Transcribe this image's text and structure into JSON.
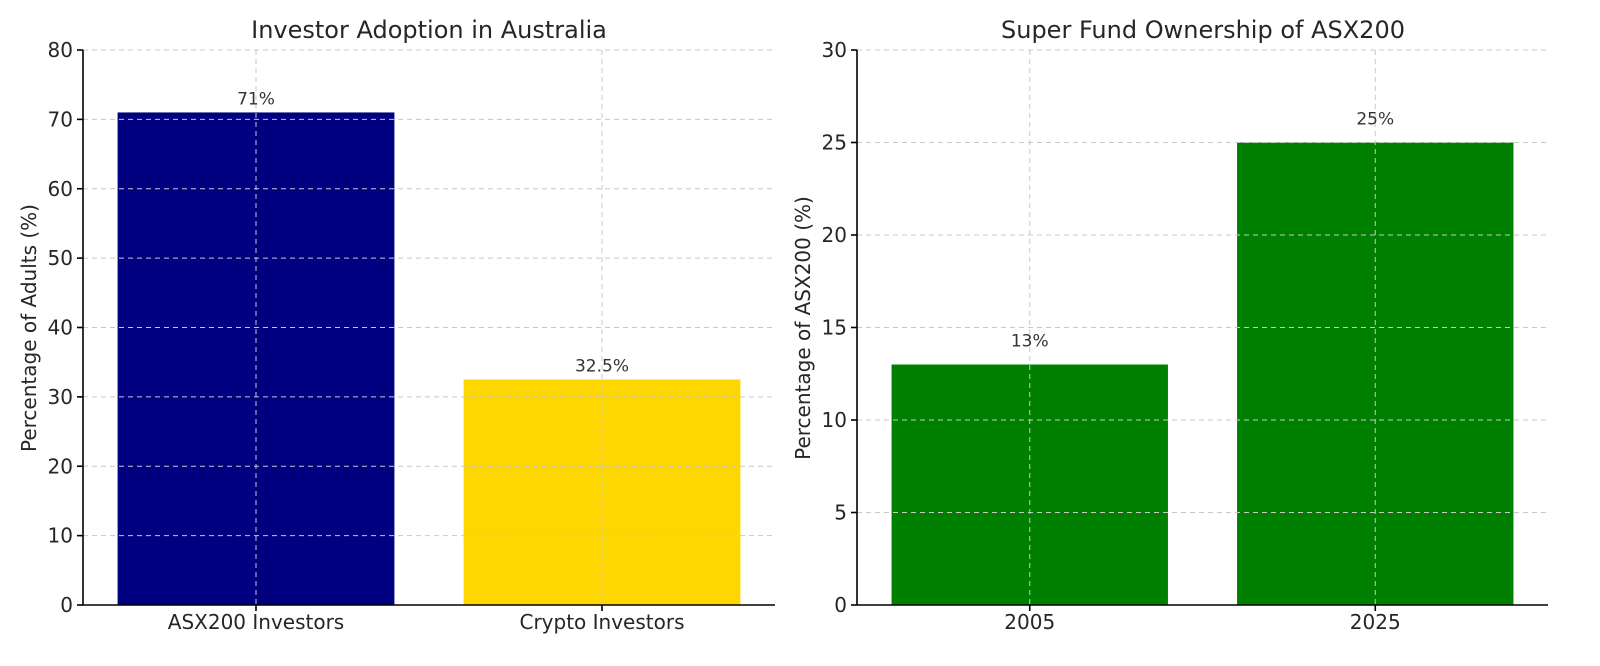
{
  "chart_data": [
    {
      "type": "bar",
      "title": "Investor Adoption in Australia",
      "ylabel": "Percentage of Adults (%)",
      "xlabel": "",
      "categories": [
        "ASX200 Investors",
        "Crypto Investors"
      ],
      "values": [
        71,
        32.5
      ],
      "data_labels": [
        "71%",
        "32.5%"
      ],
      "colors": [
        "#000080",
        "#ffd700"
      ],
      "ylim": [
        0,
        80
      ],
      "yticks": [
        0,
        10,
        20,
        30,
        40,
        50,
        60,
        70,
        80
      ],
      "grid": true
    },
    {
      "type": "bar",
      "title": "Super Fund Ownership of ASX200",
      "ylabel": "Percentage of ASX200 (%)",
      "xlabel": "",
      "categories": [
        "2005",
        "2025"
      ],
      "values": [
        13,
        25
      ],
      "data_labels": [
        "13%",
        "25%"
      ],
      "colors": [
        "#008000",
        "#008000"
      ],
      "ylim": [
        0,
        30
      ],
      "yticks": [
        0,
        5,
        10,
        15,
        20,
        25,
        30
      ],
      "grid": true
    }
  ]
}
